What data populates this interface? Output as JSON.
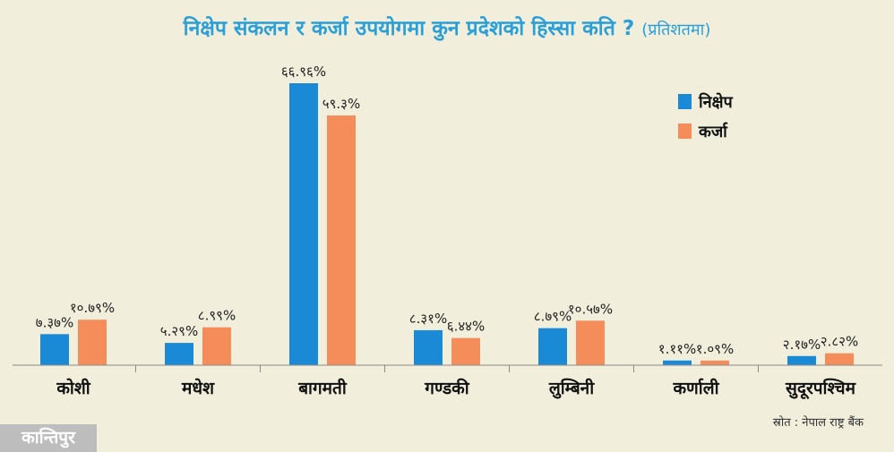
{
  "header": {
    "title": "निक्षेप संकलन र कर्जा उपयोगमा कुन प्रदेशको हिस्सा कति ?",
    "subtitle": "(प्रतिशतमा)"
  },
  "chart_data": {
    "type": "bar",
    "title": "निक्षेप संकलन र कर्जा उपयोगमा कुन प्रदेशको हिस्सा कति ? (प्रतिशतमा)",
    "xlabel": "",
    "ylabel": "",
    "ylim": [
      0,
      70
    ],
    "grid": false,
    "legend": "top-right",
    "categories": [
      "कोशी",
      "मधेश",
      "बागमती",
      "गण्डकी",
      "लुम्बिनी",
      "कर्णाली",
      "सुदूरपश्चिम"
    ],
    "series": [
      {
        "name": "निक्षेप",
        "color": "#1a8ad6",
        "values": [
          7.37,
          5.29,
          66.96,
          8.31,
          8.79,
          1.11,
          2.17
        ],
        "labels": [
          "७.३७%",
          "५.२९%",
          "६६.९६%",
          "८.३१%",
          "८.७९%",
          "१.११%",
          "२.१७%"
        ]
      },
      {
        "name": "कर्जा",
        "color": "#f58d5a",
        "values": [
          10.79,
          8.99,
          59.3,
          6.44,
          10.57,
          1.09,
          2.82
        ],
        "labels": [
          "१०.७९%",
          "८.९९%",
          "५९.३%",
          "६.४४%",
          "१०.५७%",
          "१.०९%",
          "२.८२%"
        ]
      }
    ]
  },
  "footer": {
    "source": "स्रोत : नेपाल राष्ट्र बैंक",
    "logo": "कान्तिपुर"
  }
}
